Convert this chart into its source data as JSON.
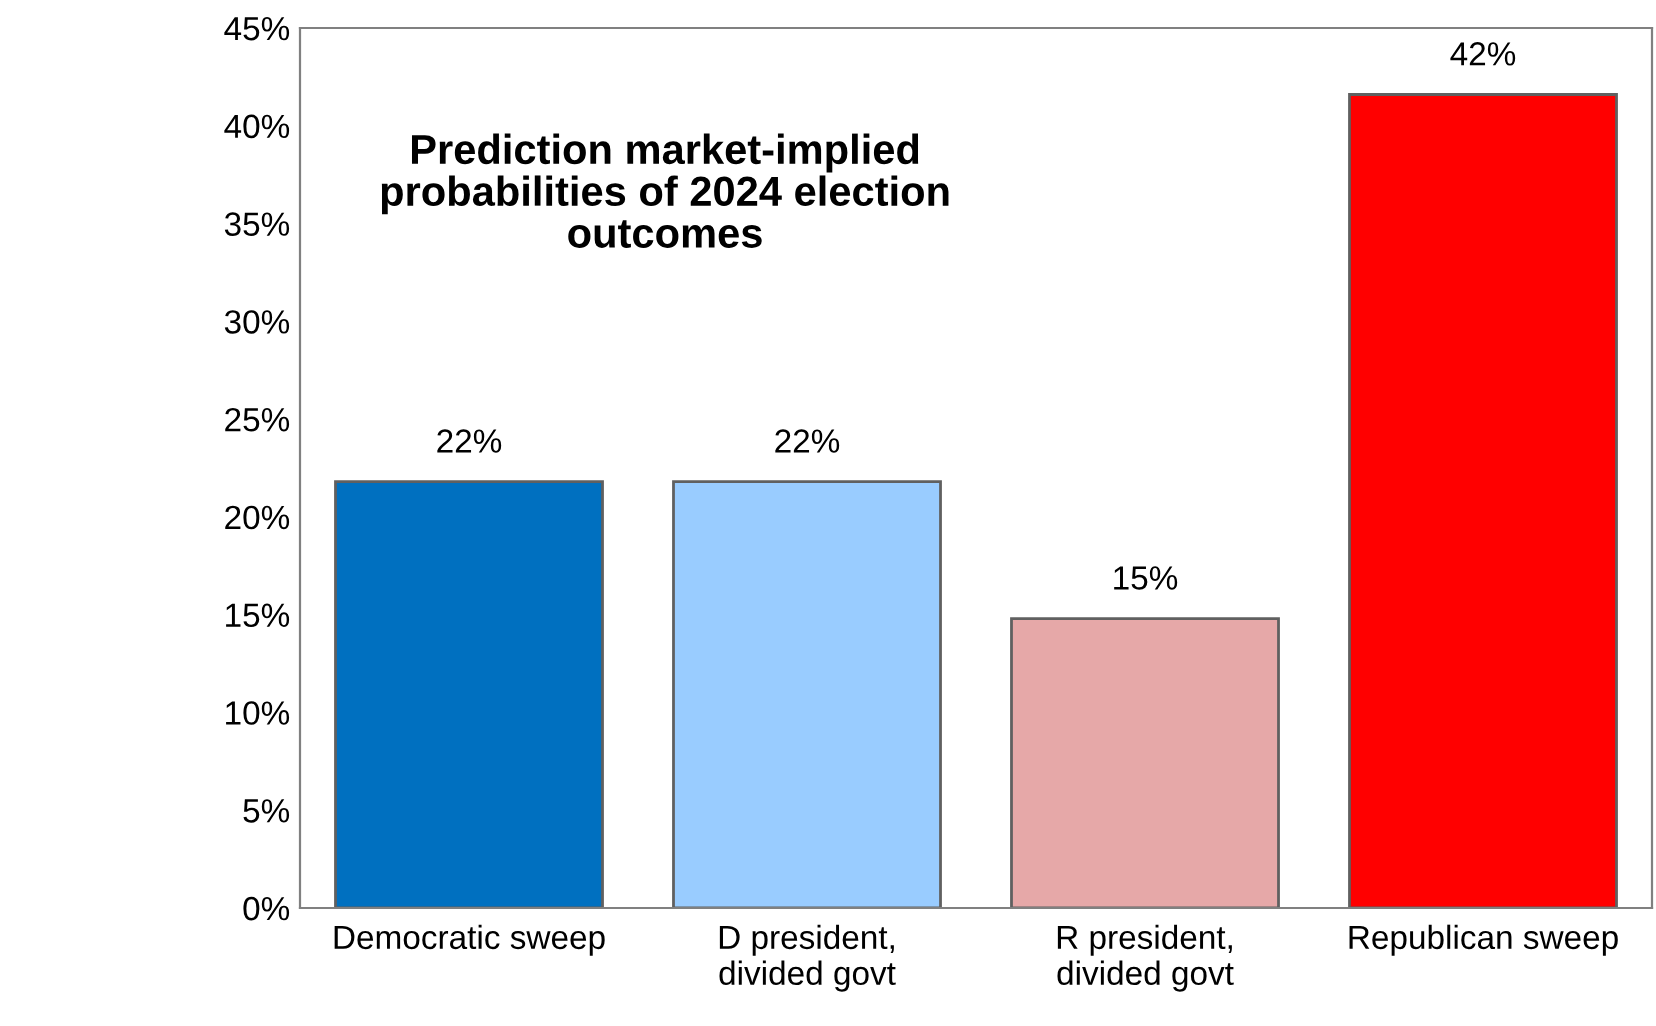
{
  "chart_data": {
    "type": "bar",
    "title": "Prediction market-implied\nprobabilities of 2024 election\noutcomes",
    "categories": [
      "Democratic sweep",
      "D president,\ndivided govt",
      "R president,\ndivided govt",
      "Republican sweep"
    ],
    "values": [
      21.8,
      21.8,
      14.8,
      41.6
    ],
    "value_labels": [
      "22%",
      "22%",
      "15%",
      "42%"
    ],
    "colors": [
      "#0070c0",
      "#99ccff",
      "#e6a8a8",
      "#ff0000"
    ],
    "ylim": [
      0,
      45
    ],
    "yticks": [
      {
        "value": 0,
        "label": "0%"
      },
      {
        "value": 5,
        "label": "5%"
      },
      {
        "value": 10,
        "label": "10%"
      },
      {
        "value": 15,
        "label": "15%"
      },
      {
        "value": 20,
        "label": "20%"
      },
      {
        "value": 25,
        "label": "25%"
      },
      {
        "value": 30,
        "label": "30%"
      },
      {
        "value": 35,
        "label": "35%"
      },
      {
        "value": 40,
        "label": "40%"
      },
      {
        "value": 45,
        "label": "45%"
      }
    ],
    "grid": false,
    "legend": false
  }
}
